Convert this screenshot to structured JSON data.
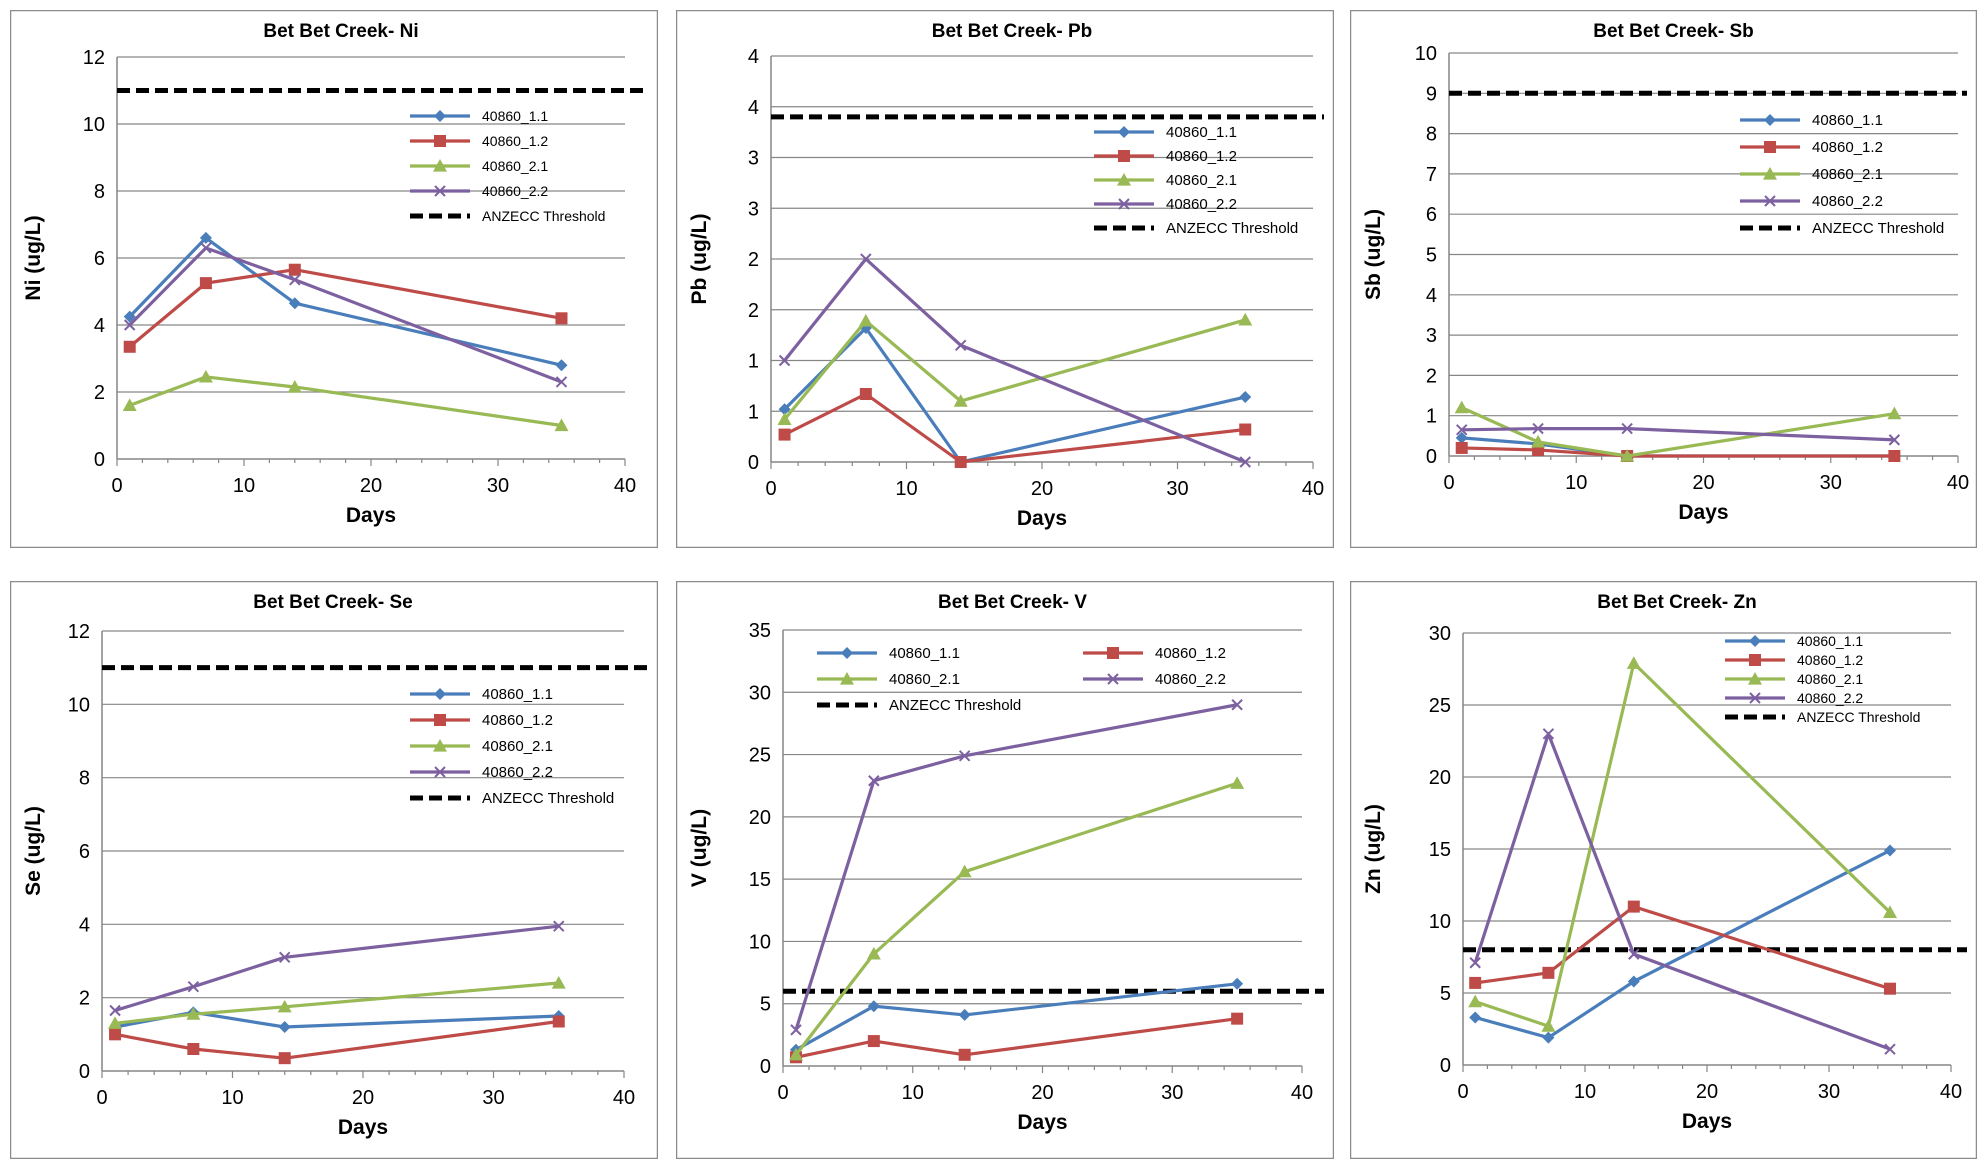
{
  "chart_data": [
    {
      "type": "line",
      "title": "Bet Bet Creek- Ni",
      "xlabel": "Days",
      "ylabel": "Ni (ug/L)",
      "xlim": [
        0,
        40
      ],
      "xticks": [
        0,
        10,
        20,
        30,
        40
      ],
      "ylim": [
        0,
        12
      ],
      "yticks": [
        0,
        2,
        4,
        6,
        8,
        10,
        12
      ],
      "legend": "right",
      "threshold": {
        "name": "ANZECC Threshold",
        "value": 11
      },
      "series": [
        {
          "name": "40860_1.1",
          "color": "#4a7ebb",
          "marker": "diamond",
          "x": [
            1,
            7,
            14,
            35
          ],
          "y": [
            4.25,
            6.6,
            4.65,
            2.8
          ]
        },
        {
          "name": "40860_1.2",
          "color": "#be4b48",
          "marker": "square",
          "x": [
            1,
            7,
            14,
            35
          ],
          "y": [
            3.35,
            5.25,
            5.65,
            4.2
          ]
        },
        {
          "name": "40860_2.1",
          "color": "#98b954",
          "marker": "triangle",
          "x": [
            1,
            7,
            14,
            35
          ],
          "y": [
            1.6,
            2.45,
            2.15,
            1.0
          ]
        },
        {
          "name": "40860_2.2",
          "color": "#7d60a0",
          "marker": "x",
          "x": [
            1,
            7,
            14,
            35
          ],
          "y": [
            4.0,
            6.3,
            5.35,
            2.3
          ]
        }
      ]
    },
    {
      "type": "line",
      "title": "Bet Bet Creek- Pb",
      "xlabel": "Days",
      "ylabel": "Pb (ug/L)",
      "xlim": [
        0,
        40
      ],
      "xticks": [
        0,
        10,
        20,
        30,
        40
      ],
      "ylim": [
        0,
        4
      ],
      "yticks": [
        0,
        0.5,
        1,
        1.5,
        2,
        2.5,
        3,
        3.5,
        4
      ],
      "ytick_labels": [
        "0",
        "1",
        "1",
        "2",
        "2",
        "3",
        "3",
        "4",
        "4"
      ],
      "legend": "right",
      "threshold": {
        "name": "ANZECC Threshold",
        "value": 3.4
      },
      "series": [
        {
          "name": "40860_1.1",
          "color": "#4a7ebb",
          "marker": "diamond",
          "x": [
            1,
            7,
            14,
            35
          ],
          "y": [
            0.52,
            1.32,
            0.0,
            0.64
          ]
        },
        {
          "name": "40860_1.2",
          "color": "#be4b48",
          "marker": "square",
          "x": [
            1,
            7,
            14,
            35
          ],
          "y": [
            0.27,
            0.67,
            0.0,
            0.32
          ]
        },
        {
          "name": "40860_2.1",
          "color": "#98b954",
          "marker": "triangle",
          "x": [
            1,
            7,
            14,
            35
          ],
          "y": [
            0.42,
            1.39,
            0.6,
            1.4
          ]
        },
        {
          "name": "40860_2.2",
          "color": "#7d60a0",
          "marker": "x",
          "x": [
            1,
            7,
            14,
            35
          ],
          "y": [
            1.0,
            2.0,
            1.15,
            0.0
          ]
        }
      ]
    },
    {
      "type": "line",
      "title": "Bet Bet Creek- Sb",
      "xlabel": "Days",
      "ylabel": "Sb (ug/L)",
      "xlim": [
        0,
        40
      ],
      "xticks": [
        0,
        10,
        20,
        30,
        40
      ],
      "ylim": [
        0,
        10
      ],
      "yticks": [
        0,
        1,
        2,
        3,
        4,
        5,
        6,
        7,
        8,
        9,
        10
      ],
      "legend": "right",
      "threshold": {
        "name": "ANZECC Threshold",
        "value": 9
      },
      "series": [
        {
          "name": "40860_1.1",
          "color": "#4a7ebb",
          "marker": "diamond",
          "x": [
            1,
            7,
            14,
            35
          ],
          "y": [
            0.45,
            0.3,
            0.0,
            0.0
          ]
        },
        {
          "name": "40860_1.2",
          "color": "#be4b48",
          "marker": "square",
          "x": [
            1,
            7,
            14,
            35
          ],
          "y": [
            0.2,
            0.15,
            0.0,
            0.0
          ]
        },
        {
          "name": "40860_2.1",
          "color": "#98b954",
          "marker": "triangle",
          "x": [
            1,
            7,
            14,
            35
          ],
          "y": [
            1.2,
            0.35,
            0.0,
            1.05
          ]
        },
        {
          "name": "40860_2.2",
          "color": "#7d60a0",
          "marker": "x",
          "x": [
            1,
            7,
            14,
            35
          ],
          "y": [
            0.65,
            0.68,
            0.68,
            0.4
          ]
        }
      ]
    },
    {
      "type": "line",
      "title": "Bet Bet Creek- Se",
      "xlabel": "Days",
      "ylabel": "Se (ug/L)",
      "xlim": [
        0,
        40
      ],
      "xticks": [
        0,
        10,
        20,
        30,
        40
      ],
      "ylim": [
        0,
        12
      ],
      "yticks": [
        0,
        2,
        4,
        6,
        8,
        10,
        12
      ],
      "legend": "right",
      "threshold": {
        "name": "ANZECC Threshold",
        "value": 11
      },
      "series": [
        {
          "name": "40860_1.1",
          "color": "#4a7ebb",
          "marker": "diamond",
          "x": [
            1,
            7,
            14,
            35
          ],
          "y": [
            1.2,
            1.6,
            1.2,
            1.5
          ]
        },
        {
          "name": "40860_1.2",
          "color": "#be4b48",
          "marker": "square",
          "x": [
            1,
            7,
            14,
            35
          ],
          "y": [
            1.0,
            0.6,
            0.35,
            1.35
          ]
        },
        {
          "name": "40860_2.1",
          "color": "#98b954",
          "marker": "triangle",
          "x": [
            1,
            7,
            14,
            35
          ],
          "y": [
            1.3,
            1.55,
            1.75,
            2.4
          ]
        },
        {
          "name": "40860_2.2",
          "color": "#7d60a0",
          "marker": "x",
          "x": [
            1,
            7,
            14,
            35
          ],
          "y": [
            1.65,
            2.3,
            3.1,
            3.95
          ]
        }
      ]
    },
    {
      "type": "line",
      "title": "Bet Bet Creek- V",
      "xlabel": "Days",
      "ylabel": "V (ug/L)",
      "xlim": [
        0,
        40
      ],
      "xticks": [
        0,
        10,
        20,
        30,
        40
      ],
      "ylim": [
        0,
        35
      ],
      "yticks": [
        0,
        5,
        10,
        15,
        20,
        25,
        30,
        35
      ],
      "legend": "top",
      "threshold": {
        "name": "ANZECC Threshold",
        "value": 6
      },
      "series": [
        {
          "name": "40860_1.1",
          "color": "#4a7ebb",
          "marker": "diamond",
          "x": [
            1,
            7,
            14,
            35
          ],
          "y": [
            1.3,
            4.8,
            4.1,
            6.6
          ]
        },
        {
          "name": "40860_1.2",
          "color": "#be4b48",
          "marker": "square",
          "x": [
            1,
            7,
            14,
            35
          ],
          "y": [
            0.7,
            2.0,
            0.9,
            3.8
          ]
        },
        {
          "name": "40860_2.1",
          "color": "#98b954",
          "marker": "triangle",
          "x": [
            1,
            7,
            14,
            35
          ],
          "y": [
            0.9,
            9.0,
            15.6,
            22.7
          ]
        },
        {
          "name": "40860_2.2",
          "color": "#7d60a0",
          "marker": "x",
          "x": [
            1,
            7,
            14,
            35
          ],
          "y": [
            2.9,
            22.9,
            24.9,
            29.0
          ]
        }
      ]
    },
    {
      "type": "line",
      "title": "Bet Bet Creek- Zn",
      "xlabel": "Days",
      "ylabel": "Zn (ug/L)",
      "xlim": [
        0,
        40
      ],
      "xticks": [
        0,
        10,
        20,
        30,
        40
      ],
      "ylim": [
        0,
        30
      ],
      "yticks": [
        0,
        5,
        10,
        15,
        20,
        25,
        30
      ],
      "legend": "top-right",
      "threshold": {
        "name": "ANZECC Threshold",
        "value": 8
      },
      "series": [
        {
          "name": "40860_1.1",
          "color": "#4a7ebb",
          "marker": "diamond",
          "x": [
            1,
            7,
            14,
            35
          ],
          "y": [
            3.3,
            1.9,
            5.8,
            14.9
          ]
        },
        {
          "name": "40860_1.2",
          "color": "#be4b48",
          "marker": "square",
          "x": [
            1,
            7,
            14,
            35
          ],
          "y": [
            5.7,
            6.4,
            11.0,
            5.3
          ]
        },
        {
          "name": "40860_2.1",
          "color": "#98b954",
          "marker": "triangle",
          "x": [
            1,
            7,
            14,
            35
          ],
          "y": [
            4.4,
            2.7,
            27.9,
            10.6
          ]
        },
        {
          "name": "40860_2.2",
          "color": "#7d60a0",
          "marker": "x",
          "x": [
            1,
            7,
            14,
            35
          ],
          "y": [
            7.1,
            23.0,
            7.7,
            1.1
          ]
        }
      ]
    }
  ]
}
